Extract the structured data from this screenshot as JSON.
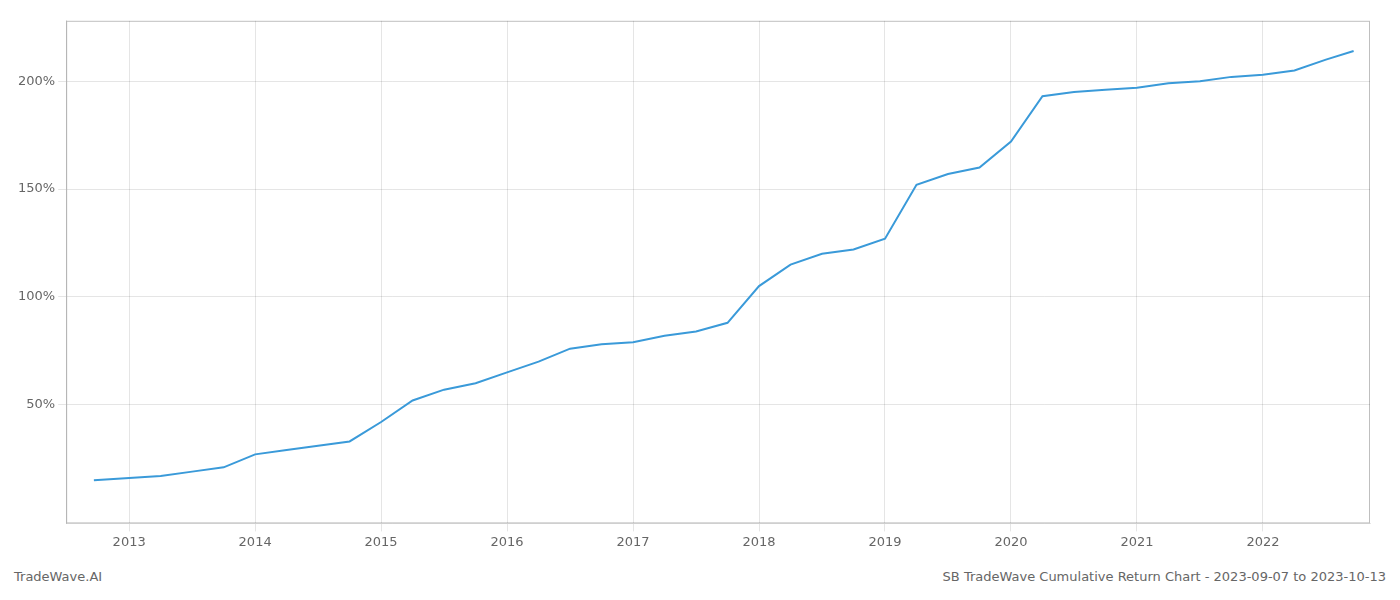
{
  "chart_data": {
    "type": "line",
    "title": "SB TradeWave Cumulative Return Chart - 2023-09-07 to 2023-10-13",
    "annotations": [
      "TradeWave.AI"
    ],
    "x": [
      2012.72,
      2013.0,
      2013.25,
      2013.5,
      2013.75,
      2014.0,
      2014.25,
      2014.5,
      2014.75,
      2015.0,
      2015.25,
      2015.5,
      2015.75,
      2016.0,
      2016.25,
      2016.5,
      2016.75,
      2017.0,
      2017.25,
      2017.5,
      2017.75,
      2018.0,
      2018.25,
      2018.5,
      2018.75,
      2019.0,
      2019.25,
      2019.5,
      2019.75,
      2020.0,
      2020.25,
      2020.5,
      2020.75,
      2021.0,
      2021.25,
      2021.5,
      2021.75,
      2022.0,
      2022.25,
      2022.5,
      2022.72
    ],
    "values": [
      15,
      16,
      17,
      19,
      21,
      27,
      29,
      31,
      33,
      42,
      52,
      57,
      60,
      65,
      70,
      76,
      78,
      79,
      82,
      84,
      88,
      105,
      115,
      120,
      122,
      127,
      152,
      157,
      160,
      172,
      193,
      195,
      196,
      197,
      199,
      200,
      202,
      203,
      205,
      210,
      214
    ],
    "color": "#3a9ad9",
    "xlim": [
      2012.5,
      2022.85
    ],
    "xticks": [
      2013,
      2014,
      2015,
      2016,
      2017,
      2018,
      2019,
      2020,
      2021,
      2022
    ],
    "ylim": [
      -5,
      228
    ],
    "yticks": [
      {
        "value": 50,
        "label": "50%"
      },
      {
        "value": 100,
        "label": "100%"
      },
      {
        "value": 150,
        "label": "150%"
      },
      {
        "value": 200,
        "label": "200%"
      }
    ],
    "grid": true
  }
}
